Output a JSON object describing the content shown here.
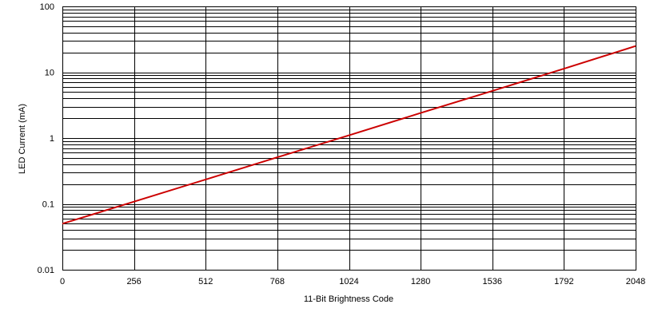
{
  "chart_data": {
    "type": "line",
    "title": "",
    "xlabel": "11-Bit Brightness Code",
    "ylabel": "LED Current (mA)",
    "xlim": [
      0,
      2048
    ],
    "ylim": [
      0.01,
      100
    ],
    "yscale": "log",
    "grid": true,
    "legend": "none",
    "x_ticks": [
      "0",
      "256",
      "512",
      "768",
      "1024",
      "1280",
      "1536",
      "1792",
      "2048"
    ],
    "y_ticks": [
      "0.01",
      "0.1",
      "1",
      "10",
      "100"
    ],
    "series": [
      {
        "color": "#cc0000",
        "x": [
          0,
          256,
          512,
          768,
          1024,
          1280,
          1536,
          1792,
          2048
        ],
        "y": [
          0.05,
          0.108,
          0.235,
          0.51,
          1.1,
          2.4,
          5.2,
          11.3,
          25
        ]
      }
    ]
  }
}
